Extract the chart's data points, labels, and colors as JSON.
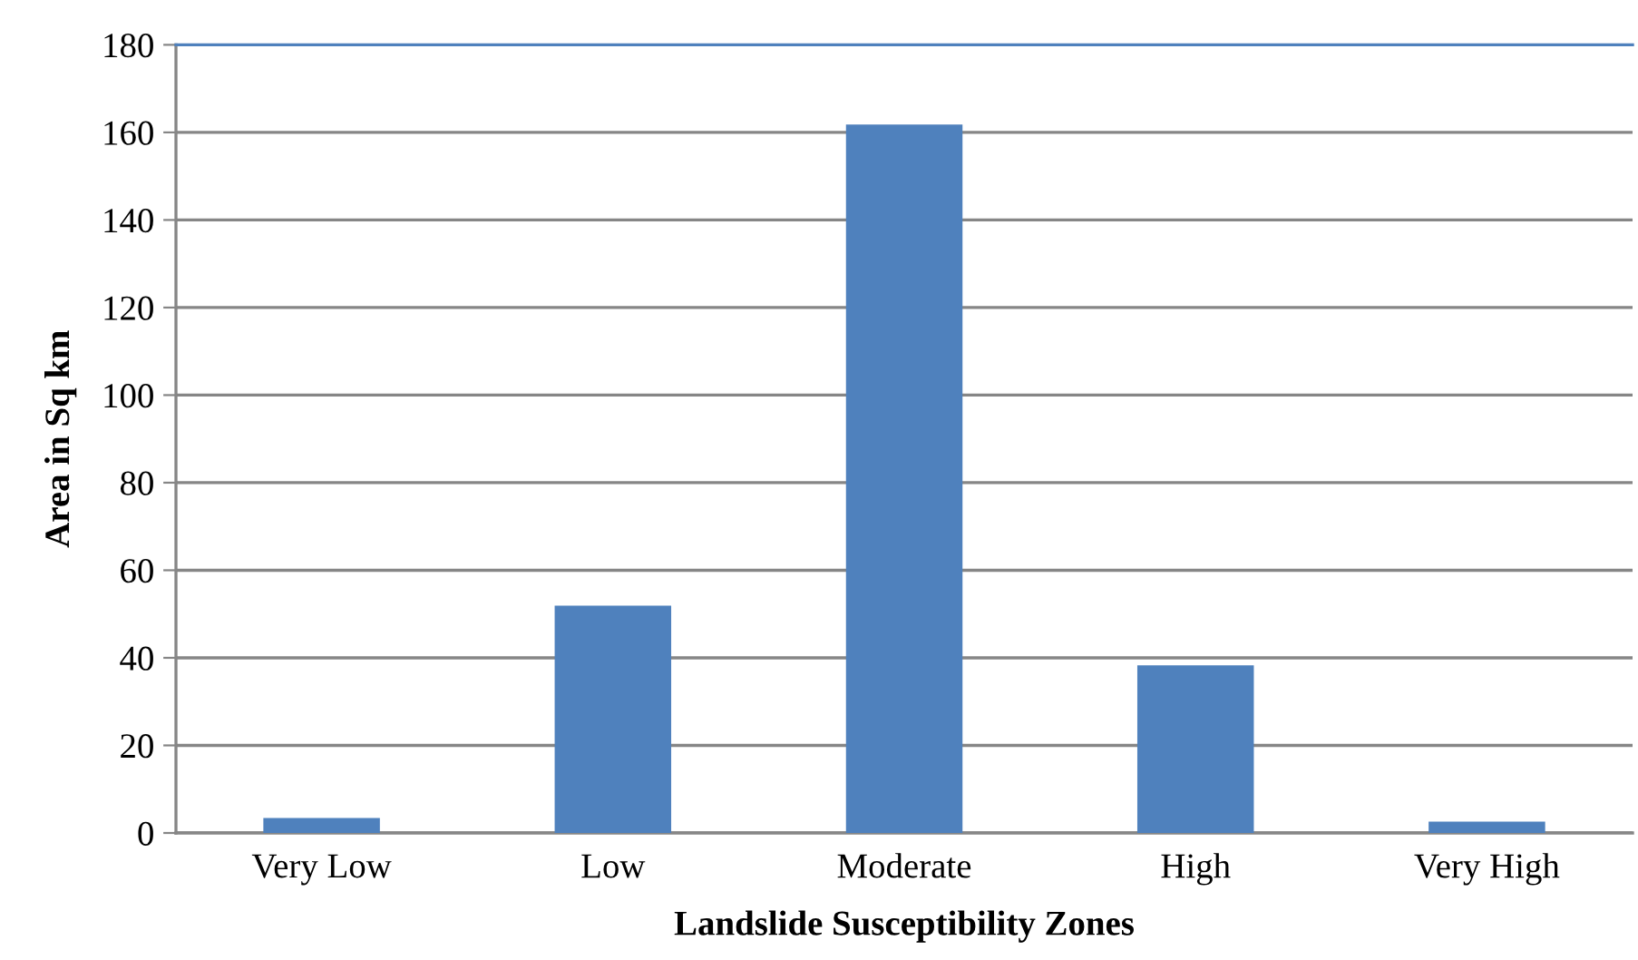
{
  "chart_data": {
    "type": "bar",
    "xlabel": "Landslide Susceptibility Zones",
    "ylabel": "Area in Sq km",
    "categories": [
      "Very Low",
      "Low",
      "Moderate",
      "High",
      "Very High"
    ],
    "values": [
      3.4,
      51.9,
      161.8,
      38.3,
      2.6
    ],
    "color": "#4f81bd",
    "ylim": [
      0,
      180
    ],
    "yticks": [
      0,
      20,
      40,
      60,
      80,
      100,
      120,
      140,
      160,
      180
    ],
    "grid": "y"
  }
}
